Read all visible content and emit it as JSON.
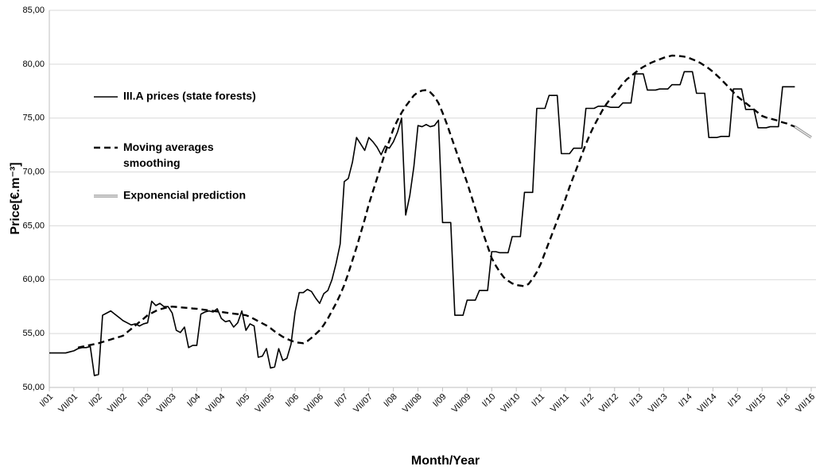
{
  "chart_data": {
    "type": "line",
    "xlabel": "Month/Year",
    "ylabel": "Price[€.m⁻³]",
    "ylim": [
      50,
      85
    ],
    "yticks": [
      {
        "value": 50,
        "label": "50,00"
      },
      {
        "value": 55,
        "label": "55,00"
      },
      {
        "value": 60,
        "label": "60,00"
      },
      {
        "value": 65,
        "label": "65,00"
      },
      {
        "value": 70,
        "label": "70,00"
      },
      {
        "value": 75,
        "label": "75,00"
      },
      {
        "value": 80,
        "label": "80,00"
      },
      {
        "value": 85,
        "label": "85,00"
      }
    ],
    "grid": true,
    "legend": "upper left",
    "categories": [
      "I/01",
      null,
      null,
      null,
      null,
      null,
      "VII/01",
      null,
      null,
      null,
      null,
      null,
      "I/02",
      null,
      null,
      null,
      null,
      null,
      "VII/02",
      null,
      null,
      null,
      null,
      null,
      "I/03",
      null,
      null,
      null,
      null,
      null,
      "VII/03",
      null,
      null,
      null,
      null,
      null,
      "I/04",
      null,
      null,
      null,
      null,
      null,
      "VII/04",
      null,
      null,
      null,
      null,
      null,
      "I/05",
      null,
      null,
      null,
      null,
      null,
      "VII/05",
      null,
      null,
      null,
      null,
      null,
      "I/06",
      null,
      null,
      null,
      null,
      null,
      "VII/06",
      null,
      null,
      null,
      null,
      null,
      "I/07",
      null,
      null,
      null,
      null,
      null,
      "VII/07",
      null,
      null,
      null,
      null,
      null,
      "I/08",
      null,
      null,
      null,
      null,
      null,
      "VII/08",
      null,
      null,
      null,
      null,
      null,
      "I/09",
      null,
      null,
      null,
      null,
      null,
      "VII/09",
      null,
      null,
      null,
      null,
      null,
      "I/10",
      null,
      null,
      null,
      null,
      null,
      "VII/10",
      null,
      null,
      null,
      null,
      null,
      "I/11",
      null,
      null,
      null,
      null,
      null,
      "VII/11",
      null,
      null,
      null,
      null,
      null,
      "I/12",
      null,
      null,
      null,
      null,
      null,
      "VII/12",
      null,
      null,
      null,
      null,
      null,
      "I/13",
      null,
      null,
      null,
      null,
      null,
      "VII/13",
      null,
      null,
      null,
      null,
      null,
      "I/14",
      null,
      null,
      null,
      null,
      null,
      "VII/14",
      null,
      null,
      null,
      null,
      null,
      "I/15",
      null,
      null,
      null,
      null,
      null,
      "VII/15",
      null,
      null,
      null,
      null,
      null,
      "I/16",
      null,
      null,
      null,
      null,
      null,
      "VII/16"
    ],
    "series": [
      {
        "name": "III.A prices (state forests)",
        "color": "#000000",
        "line_style": "solid",
        "values": [
          53.2,
          53.2,
          53.2,
          53.2,
          53.2,
          53.3,
          53.4,
          53.6,
          53.7,
          53.7,
          53.8,
          51.1,
          51.2,
          56.7,
          56.9,
          57.1,
          56.8,
          56.5,
          56.2,
          56.0,
          55.8,
          55.9,
          55.7,
          55.9,
          56.0,
          58.0,
          57.6,
          57.8,
          57.5,
          57.5,
          56.9,
          55.3,
          55.1,
          55.6,
          53.7,
          53.9,
          53.9,
          56.8,
          57.0,
          57.1,
          57.0,
          57.3,
          56.4,
          56.1,
          56.2,
          55.6,
          56.0,
          57.1,
          55.3,
          55.9,
          55.7,
          52.8,
          52.9,
          53.6,
          51.8,
          51.9,
          53.6,
          52.5,
          52.7,
          54.0,
          57.0,
          58.8,
          58.8,
          59.1,
          58.9,
          58.3,
          57.8,
          58.7,
          59.0,
          60.0,
          61.5,
          63.3,
          69.1,
          69.4,
          70.9,
          73.2,
          72.6,
          72.0,
          73.2,
          72.8,
          72.3,
          71.6,
          72.4,
          72.2,
          72.8,
          73.7,
          75.0,
          66.0,
          67.8,
          70.5,
          74.3,
          74.2,
          74.4,
          74.2,
          74.3,
          74.8,
          65.3,
          65.3,
          65.3,
          56.7,
          56.7,
          56.7,
          58.1,
          58.1,
          58.1,
          59.0,
          59.0,
          59.0,
          62.6,
          62.6,
          62.5,
          62.5,
          62.5,
          64.0,
          64.0,
          64.0,
          68.1,
          68.1,
          68.1,
          75.9,
          75.9,
          75.9,
          77.1,
          77.1,
          77.1,
          71.7,
          71.7,
          71.7,
          72.2,
          72.2,
          72.2,
          75.9,
          75.9,
          75.9,
          76.1,
          76.1,
          76.1,
          76.0,
          76.0,
          76.0,
          76.4,
          76.4,
          76.4,
          79.1,
          79.1,
          79.1,
          77.6,
          77.6,
          77.6,
          77.7,
          77.7,
          77.7,
          78.1,
          78.1,
          78.1,
          79.3,
          79.3,
          79.3,
          77.3,
          77.3,
          77.3,
          73.2,
          73.2,
          73.2,
          73.3,
          73.3,
          73.3,
          77.7,
          77.7,
          77.7,
          75.8,
          75.8,
          75.8,
          74.1,
          74.1,
          74.1,
          74.2,
          74.2,
          74.2,
          77.9,
          77.9,
          77.9,
          77.9,
          null,
          null,
          null,
          null
        ]
      },
      {
        "name": "Moving averages smoothing",
        "color": "#000000",
        "line_style": "dashed",
        "values": [
          null,
          null,
          null,
          null,
          null,
          null,
          null,
          53.7,
          53.78,
          53.86,
          53.94,
          54.02,
          54.1,
          54.22,
          54.33,
          54.45,
          54.57,
          54.68,
          54.8,
          55.12,
          55.43,
          55.75,
          56.07,
          56.38,
          56.7,
          56.9,
          57.1,
          57.25,
          57.35,
          57.45,
          57.5,
          57.47,
          57.43,
          57.4,
          57.37,
          57.33,
          57.3,
          57.25,
          57.2,
          57.15,
          57.1,
          57.05,
          57.0,
          56.95,
          56.9,
          56.85,
          56.8,
          56.75,
          56.7,
          56.55,
          56.35,
          56.15,
          55.95,
          55.75,
          55.5,
          55.2,
          54.95,
          54.7,
          54.5,
          54.35,
          54.2,
          54.15,
          54.1,
          54.3,
          54.6,
          54.95,
          55.3,
          55.8,
          56.4,
          57.1,
          57.8,
          58.6,
          59.5,
          60.6,
          61.8,
          63.0,
          64.3,
          65.6,
          67.0,
          68.2,
          69.4,
          70.6,
          71.8,
          72.9,
          74.0,
          74.8,
          75.5,
          76.1,
          76.6,
          77.1,
          77.4,
          77.55,
          77.6,
          77.4,
          77.0,
          76.4,
          75.5,
          74.5,
          73.4,
          72.3,
          71.2,
          70.1,
          69.0,
          67.8,
          66.6,
          65.4,
          64.2,
          63.1,
          62.0,
          61.3,
          60.7,
          60.2,
          59.9,
          59.65,
          59.5,
          59.45,
          59.4,
          59.6,
          60.1,
          60.7,
          61.5,
          62.5,
          63.5,
          64.5,
          65.5,
          66.5,
          67.5,
          68.6,
          69.6,
          70.6,
          71.6,
          72.6,
          73.5,
          74.3,
          75.0,
          75.7,
          76.3,
          76.8,
          77.2,
          77.7,
          78.2,
          78.6,
          78.9,
          79.2,
          79.5,
          79.75,
          79.95,
          80.15,
          80.3,
          80.45,
          80.6,
          80.7,
          80.8,
          80.78,
          80.75,
          80.7,
          80.6,
          80.45,
          80.3,
          80.1,
          79.85,
          79.6,
          79.3,
          78.95,
          78.6,
          78.2,
          77.8,
          77.4,
          77.0,
          76.7,
          76.4,
          76.1,
          75.8,
          75.5,
          75.2,
          75.05,
          74.95,
          74.85,
          74.75,
          74.6,
          74.5,
          74.35,
          74.2,
          null,
          null,
          null,
          null
        ]
      },
      {
        "name": "Exponencial prediction",
        "color": "#9a9a9a",
        "line_style": "double",
        "values": [
          null,
          null,
          null,
          null,
          null,
          null,
          null,
          null,
          null,
          null,
          null,
          null,
          null,
          null,
          null,
          null,
          null,
          null,
          null,
          null,
          null,
          null,
          null,
          null,
          null,
          null,
          null,
          null,
          null,
          null,
          null,
          null,
          null,
          null,
          null,
          null,
          null,
          null,
          null,
          null,
          null,
          null,
          null,
          null,
          null,
          null,
          null,
          null,
          null,
          null,
          null,
          null,
          null,
          null,
          null,
          null,
          null,
          null,
          null,
          null,
          null,
          null,
          null,
          null,
          null,
          null,
          null,
          null,
          null,
          null,
          null,
          null,
          null,
          null,
          null,
          null,
          null,
          null,
          null,
          null,
          null,
          null,
          null,
          null,
          null,
          null,
          null,
          null,
          null,
          null,
          null,
          null,
          null,
          null,
          null,
          null,
          null,
          null,
          null,
          null,
          null,
          null,
          null,
          null,
          null,
          null,
          null,
          null,
          null,
          null,
          null,
          null,
          null,
          null,
          null,
          null,
          null,
          null,
          null,
          null,
          null,
          null,
          null,
          null,
          null,
          null,
          null,
          null,
          null,
          null,
          null,
          null,
          null,
          null,
          null,
          null,
          null,
          null,
          null,
          null,
          null,
          null,
          null,
          null,
          null,
          null,
          null,
          null,
          null,
          null,
          null,
          null,
          null,
          null,
          null,
          null,
          null,
          null,
          null,
          null,
          null,
          null,
          null,
          null,
          null,
          null,
          null,
          null,
          null,
          null,
          null,
          null,
          null,
          null,
          null,
          null,
          null,
          null,
          null,
          null,
          null,
          null,
          74.2,
          73.95,
          73.7,
          73.45,
          73.2
        ]
      }
    ]
  }
}
